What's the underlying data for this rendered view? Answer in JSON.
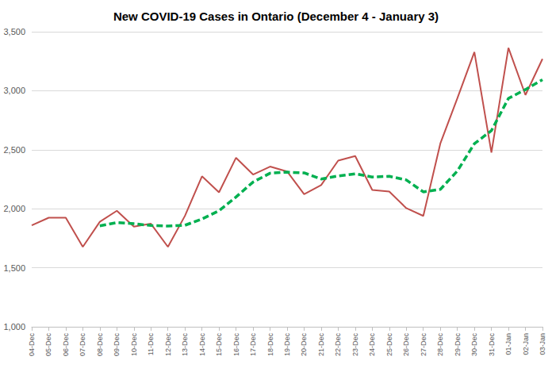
{
  "chart_data": {
    "type": "line",
    "title": "New COVID-19 Cases in Ontario (December 4 - January 3)",
    "categories": [
      "04-Dec",
      "05-Dec",
      "06-Dec",
      "07-Dec",
      "08-Dec",
      "09-Dec",
      "10-Dec",
      "11-Dec",
      "12-Dec",
      "13-Dec",
      "14-Dec",
      "15-Dec",
      "16-Dec",
      "17-Dec",
      "18-Dec",
      "19-Dec",
      "20-Dec",
      "21-Dec",
      "22-Dec",
      "23-Dec",
      "24-Dec",
      "25-Dec",
      "26-Dec",
      "27-Dec",
      "28-Dec",
      "29-Dec",
      "30-Dec",
      "31-Dec",
      "01-Jan",
      "02-Jan",
      "03-Jan"
    ],
    "series": [
      {
        "color": "#c0504d",
        "line_style": "solid",
        "values": [
          1859,
          1924,
          1924,
          1677,
          1890,
          1983,
          1848,
          1873,
          1677,
          1940,
          2275,
          2139,
          2432,
          2290,
          2357,
          2316,
          2123,
          2200,
          2408,
          2447,
          2159,
          2146,
          2005,
          1939,
          2553,
          2936,
          3328,
          2476,
          3363,
          2964,
          3270
        ]
      },
      {
        "color": "#00b050",
        "line_style": "dashed",
        "values": [
          null,
          null,
          null,
          null,
          1855,
          1883,
          1873,
          1858,
          1853,
          1860,
          1913,
          1983,
          2100,
          2226,
          2301,
          2310,
          2304,
          2252,
          2278,
          2296,
          2269,
          2275,
          2244,
          2143,
          2164,
          2320,
          2551,
          2662,
          2935,
          3010,
          3093
        ]
      }
    ],
    "ylim": [
      1000,
      3500
    ],
    "yticks": [
      {
        "value": 1000,
        "label": "1,000"
      },
      {
        "value": 1500,
        "label": "1,500"
      },
      {
        "value": 2000,
        "label": "2,000"
      },
      {
        "value": 2500,
        "label": "2,500"
      },
      {
        "value": 3000,
        "label": "3,000"
      },
      {
        "value": 3500,
        "label": "3,500"
      }
    ],
    "grid": true
  }
}
